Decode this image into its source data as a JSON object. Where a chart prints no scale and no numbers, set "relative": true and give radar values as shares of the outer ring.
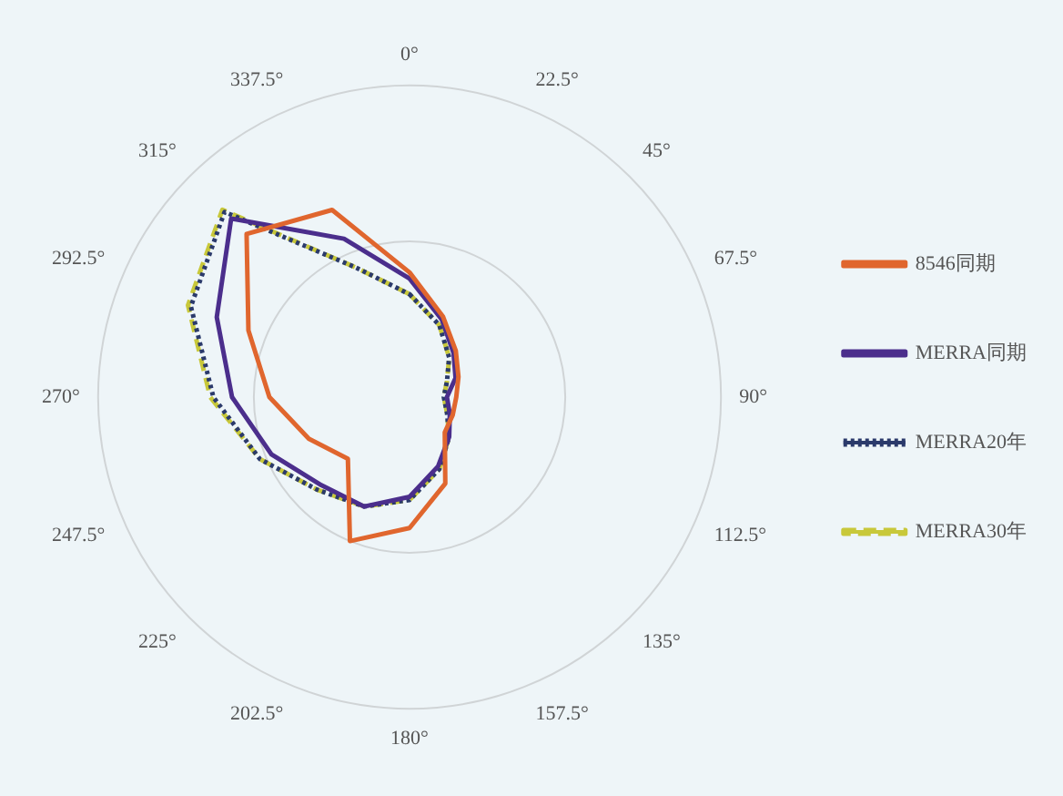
{
  "chart_data": {
    "type": "radar",
    "relative": true,
    "grid": true,
    "legend": "right",
    "marker": "none",
    "categories": [
      "0°",
      "22.5°",
      "45°",
      "67.5°",
      "90°",
      "112.5°",
      "135°",
      "157.5°",
      "180°",
      "202.5°",
      "225°",
      "247.5°",
      "270°",
      "292.5°",
      "315°",
      "337.5°"
    ],
    "series": [
      {
        "name": "8546同期",
        "color": "#e0662e",
        "line_style": "solid",
        "values": [
          0.4,
          0.28,
          0.21,
          0.17,
          0.15,
          0.15,
          0.16,
          0.3,
          0.42,
          0.5,
          0.28,
          0.35,
          0.45,
          0.56,
          0.74,
          0.65
        ]
      },
      {
        "name": "MERRA同期",
        "color": "#4b2e8c",
        "line_style": "solid",
        "values": [
          0.38,
          0.27,
          0.2,
          0.16,
          0.12,
          0.14,
          0.18,
          0.24,
          0.32,
          0.38,
          0.4,
          0.48,
          0.57,
          0.67,
          0.81,
          0.55
        ]
      },
      {
        "name": "MERRA20年",
        "color": "#2b3a6b",
        "line_style": "dotted",
        "values": [
          0.33,
          0.25,
          0.18,
          0.13,
          0.11,
          0.13,
          0.18,
          0.25,
          0.33,
          0.38,
          0.42,
          0.52,
          0.63,
          0.76,
          0.84,
          0.45
        ]
      },
      {
        "name": "MERRA30年",
        "color": "#c8c83a",
        "line_style": "dashed",
        "values": [
          0.33,
          0.25,
          0.18,
          0.13,
          0.11,
          0.13,
          0.18,
          0.25,
          0.33,
          0.38,
          0.42,
          0.52,
          0.64,
          0.77,
          0.85,
          0.45
        ]
      }
    ]
  }
}
